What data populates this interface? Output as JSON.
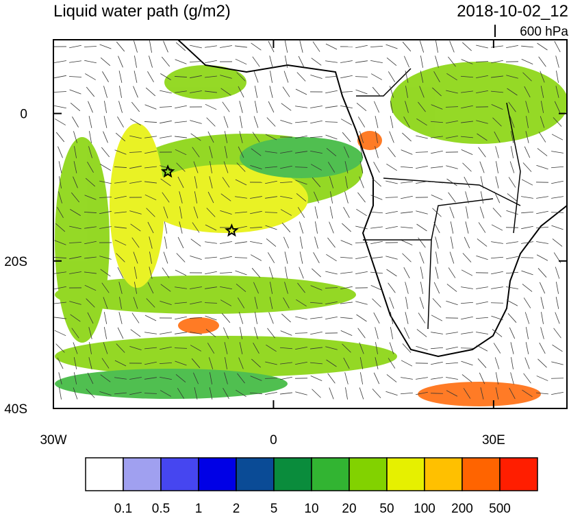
{
  "title": "Liquid water path (g/m2)",
  "time": "2018-10-02_12",
  "level": "600 hPa",
  "map": {
    "xlim": [
      -30,
      40
    ],
    "ylim": [
      -40,
      10
    ],
    "xticks": [
      {
        "value": -30,
        "label": "30W"
      },
      0,
      {
        "value": 30,
        "label": "30E"
      }
    ],
    "yticks": [
      0,
      {
        "value": -20,
        "label": "20S"
      },
      {
        "value": -40,
        "label": "40S"
      }
    ],
    "stations": [
      {
        "lon": -14.4,
        "lat": -7.9
      },
      {
        "lon": -5.7,
        "lat": -15.9
      }
    ]
  },
  "colorbar": {
    "levels": [
      0.1,
      0.5,
      1,
      2,
      5,
      10,
      20,
      50,
      100,
      200,
      500
    ],
    "colors": [
      "#ffffff",
      "#a0a0f0",
      "#4646f0",
      "#0000e6",
      "#0a4b96",
      "#0a8c3c",
      "#32b432",
      "#82d200",
      "#e6f000",
      "#ffc000",
      "#ff6400",
      "#ff1e00"
    ]
  }
}
